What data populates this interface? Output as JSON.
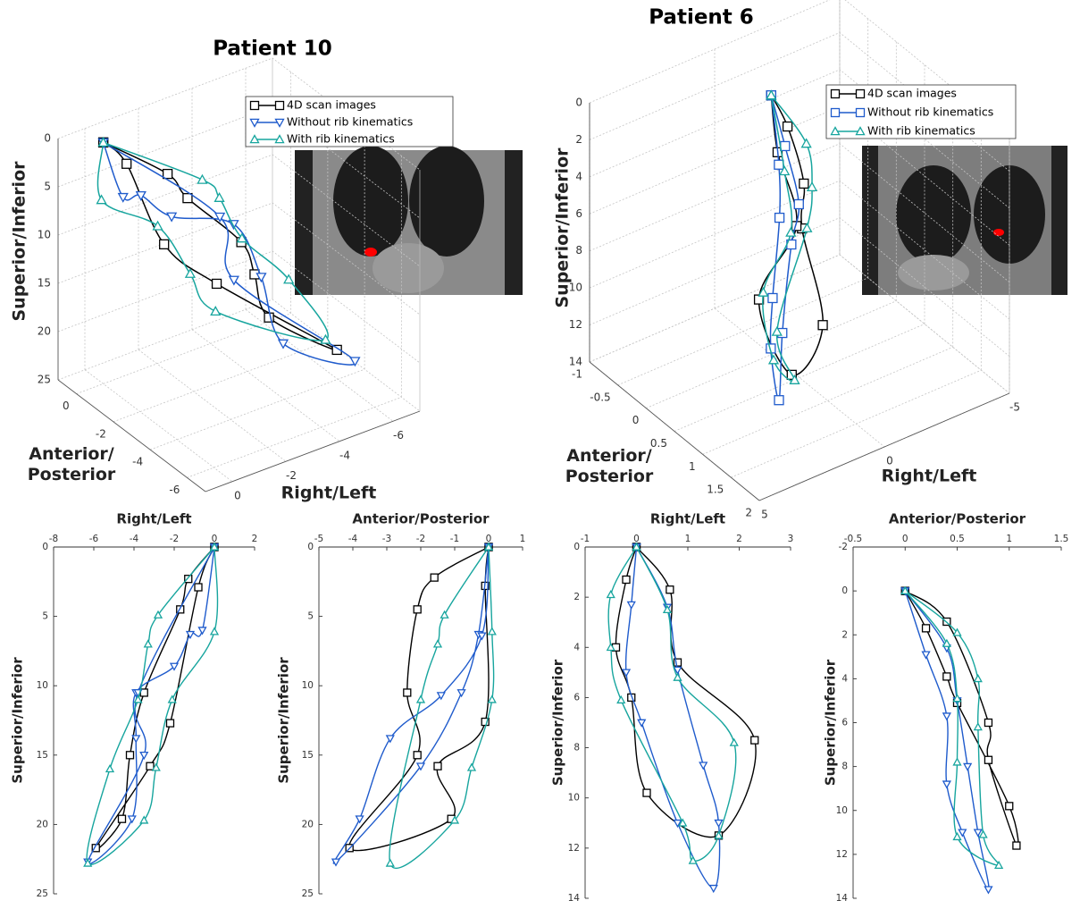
{
  "chart_data": [
    {
      "type": "line3d",
      "title": "Patient 10",
      "xlabel": "Right/Left",
      "ylabel": "Anterior/ Posterior",
      "zlabel": "Superior/Inferior",
      "xlim": [
        1,
        -7
      ],
      "xticks": [
        0,
        -2,
        -4,
        -6
      ],
      "ylim": [
        1,
        -7
      ],
      "yticks": [
        0,
        -2,
        -4,
        -6
      ],
      "zlim": [
        0,
        25
      ],
      "zticks": [
        0,
        5,
        10,
        15,
        20,
        25
      ],
      "grid": true,
      "legend": "top-right",
      "series": [
        {
          "name": "4D scan images",
          "color": "#000000",
          "marker": "square",
          "x": [
            0,
            -1.3,
            -1.7,
            -3.5,
            -4.2,
            -4.6,
            -5.9,
            -3.2,
            -2.2,
            -0.8,
            0
          ],
          "y": [
            0,
            -1.6,
            -2.1,
            -2.4,
            -2.1,
            -2.3,
            -4.1,
            -1.5,
            -0.1,
            -0.1,
            0
          ],
          "z": [
            0,
            2.3,
            4.5,
            10.5,
            15,
            19.6,
            21.7,
            15.8,
            12.7,
            2.9,
            0
          ]
        },
        {
          "name": "Without rib kinematics",
          "color": "#1f5bcc",
          "marker": "triangle-down",
          "x": [
            0,
            -0.6,
            -1.2,
            -2,
            -3.9,
            -3.9,
            -4.1,
            -6.3,
            -3.5,
            -3.8,
            0
          ],
          "y": [
            0,
            -0.2,
            -0.3,
            -0.8,
            -1.4,
            -2.9,
            -3.8,
            -4.5,
            -2,
            -0.8,
            0
          ],
          "z": [
            0,
            6,
            6.3,
            8.6,
            10.5,
            13.8,
            19.6,
            22.7,
            15,
            10.5,
            0
          ]
        },
        {
          "name": "With rib kinematics",
          "color": "#17a59e",
          "marker": "triangle-up",
          "x": [
            0,
            -2.8,
            -3.3,
            -3.8,
            -5.2,
            -6.3,
            -3.5,
            -2.9,
            -2.1,
            0,
            0
          ],
          "y": [
            0,
            -1.3,
            -1.5,
            -2,
            -2.5,
            -2.9,
            -1,
            -0.5,
            0.1,
            0.1,
            0
          ],
          "z": [
            0,
            4.9,
            7,
            11,
            16,
            22.8,
            19.7,
            15.9,
            11,
            6.1,
            0
          ]
        }
      ]
    },
    {
      "type": "line3d",
      "title": "Patient 6",
      "xlabel": "Right/Left",
      "ylabel": "Anterior/ Posterior",
      "zlabel": "Superior/Inferior",
      "xlim": [
        5,
        -5
      ],
      "xticks": [
        5,
        0,
        -5
      ],
      "ylim": [
        -1,
        2
      ],
      "yticks": [
        -1,
        -0.5,
        0,
        0.5,
        1,
        1.5,
        2
      ],
      "zlim": [
        0,
        14
      ],
      "zticks": [
        0,
        2,
        4,
        6,
        8,
        10,
        12,
        14
      ],
      "grid": true,
      "legend": "top-right",
      "series": [
        {
          "name": "4D scan images",
          "color": "#000000",
          "marker": "square",
          "x": [
            0,
            -0.2,
            -0.4,
            -0.1,
            0.2,
            1.6,
            2.3,
            0.8,
            0.65,
            0
          ],
          "y": [
            0,
            0.2,
            0.4,
            0.5,
            1,
            1.07,
            0.8,
            0.8,
            0.4,
            0
          ],
          "z": [
            0,
            1.3,
            4,
            6,
            9.8,
            11.5,
            7.7,
            4.6,
            1.7,
            0
          ]
        },
        {
          "name": "Without rib kinematics",
          "color": "#1f5bcc",
          "marker": "square",
          "x": [
            0,
            -0.1,
            -0.2,
            0.1,
            0.8,
            1.5,
            1.6,
            1.3,
            0.8,
            0.6,
            0
          ],
          "y": [
            0,
            0.2,
            0.4,
            0.4,
            0.55,
            0.8,
            0.7,
            0.6,
            0.5,
            0.4,
            0
          ],
          "z": [
            0,
            2.3,
            5,
            7,
            11,
            13.6,
            11,
            8.7,
            4.9,
            2.4,
            0
          ]
        },
        {
          "name": "With rib kinematics",
          "color": "#17a59e",
          "marker": "triangle-up",
          "x": [
            0,
            -0.5,
            -0.5,
            -0.3,
            0.9,
            1.1,
            1.6,
            1.9,
            0.8,
            0.6,
            0
          ],
          "y": [
            0,
            0.4,
            0.5,
            0.5,
            0.5,
            0.9,
            0.75,
            0.7,
            0.7,
            0.5,
            0
          ],
          "z": [
            0,
            1.9,
            4,
            6.1,
            11,
            12.5,
            11.5,
            7.8,
            5.2,
            2.5,
            0
          ]
        }
      ]
    },
    {
      "type": "line",
      "xlabel": "Right/Left",
      "ylabel": "Superior/Inferior",
      "xlim": [
        -8,
        2
      ],
      "xticks": [
        -8,
        -6,
        -4,
        -2,
        0,
        2
      ],
      "ylim": [
        0,
        25
      ],
      "yticks": [
        0,
        5,
        10,
        15,
        20,
        25
      ],
      "y_reversed": true,
      "series": [
        {
          "color": "#000000",
          "marker": "square",
          "x": [
            0,
            -1.3,
            -1.7,
            -3.5,
            -4.2,
            -4.6,
            -5.9,
            -3.2,
            -2.2,
            -0.8,
            0
          ],
          "values": [
            0,
            2.3,
            4.5,
            10.5,
            15,
            19.6,
            21.7,
            15.8,
            12.7,
            2.9,
            0
          ]
        },
        {
          "color": "#1f5bcc",
          "marker": "triangle-down",
          "x": [
            0,
            -0.6,
            -1.2,
            -2,
            -3.9,
            -3.9,
            -4.1,
            -6.3,
            -3.5,
            -3.8,
            0
          ],
          "values": [
            0,
            6,
            6.3,
            8.6,
            10.5,
            13.8,
            19.6,
            22.7,
            15,
            10.5,
            0
          ]
        },
        {
          "color": "#17a59e",
          "marker": "triangle-up",
          "x": [
            0,
            -2.8,
            -3.3,
            -3.8,
            -5.2,
            -6.3,
            -3.5,
            -2.9,
            -2.1,
            0,
            0
          ],
          "values": [
            0,
            4.9,
            7,
            11,
            16,
            22.8,
            19.7,
            15.9,
            11,
            6.1,
            0
          ]
        }
      ]
    },
    {
      "type": "line",
      "xlabel": "Anterior/Posterior",
      "ylabel": "Superior/Inferior",
      "xlim": [
        -5,
        1
      ],
      "xticks": [
        -5,
        -4,
        -3,
        -2,
        -1,
        0,
        1
      ],
      "ylim": [
        0,
        25
      ],
      "yticks": [
        0,
        5,
        10,
        15,
        20,
        25
      ],
      "y_reversed": true,
      "series": [
        {
          "color": "#000000",
          "marker": "square",
          "x": [
            0,
            -1.6,
            -2.1,
            -2.4,
            -2.1,
            -4.1,
            -1.1,
            -1.5,
            -0.1,
            -0.1,
            0
          ],
          "values": [
            0,
            2.2,
            4.5,
            10.5,
            15,
            21.7,
            19.6,
            15.8,
            12.6,
            2.8,
            0
          ]
        },
        {
          "color": "#1f5bcc",
          "marker": "triangle-down",
          "x": [
            0,
            -0.3,
            -0.8,
            -2,
            -4.5,
            -3.8,
            -2.9,
            -1.4,
            -0.2,
            0
          ],
          "values": [
            0,
            6.3,
            10.5,
            15.8,
            22.7,
            19.6,
            13.8,
            10.7,
            6.4,
            0
          ]
        },
        {
          "color": "#17a59e",
          "marker": "triangle-up",
          "x": [
            0,
            -1.3,
            -1.5,
            -2,
            -2.9,
            -1,
            -0.5,
            0.1,
            0.1,
            0
          ],
          "values": [
            0,
            4.9,
            7,
            11,
            22.8,
            19.7,
            15.9,
            11,
            6.1,
            0
          ]
        }
      ]
    },
    {
      "type": "line",
      "xlabel": "Right/Left",
      "ylabel": "Superior/Inferior",
      "xlim": [
        -1,
        3
      ],
      "xticks": [
        -1,
        0,
        1,
        2,
        3
      ],
      "ylim": [
        0,
        14
      ],
      "yticks": [
        0,
        2,
        4,
        6,
        8,
        10,
        12,
        14
      ],
      "y_reversed": true,
      "series": [
        {
          "color": "#000000",
          "marker": "square",
          "x": [
            0,
            -0.2,
            -0.4,
            -0.1,
            0.2,
            1.6,
            2.3,
            0.8,
            0.65,
            0
          ],
          "values": [
            0,
            1.3,
            4,
            6,
            9.8,
            11.5,
            7.7,
            4.6,
            1.7,
            0
          ]
        },
        {
          "color": "#1f5bcc",
          "marker": "triangle-down",
          "x": [
            0,
            -0.1,
            -0.2,
            0.1,
            0.8,
            1.5,
            1.6,
            1.3,
            0.8,
            0.6,
            0
          ],
          "values": [
            0,
            2.3,
            5,
            7,
            11,
            13.6,
            11,
            8.7,
            4.9,
            2.4,
            0
          ]
        },
        {
          "color": "#17a59e",
          "marker": "triangle-up",
          "x": [
            0,
            -0.5,
            -0.5,
            -0.3,
            0.9,
            1.1,
            1.6,
            1.9,
            0.8,
            0.6,
            0
          ],
          "values": [
            0,
            1.9,
            4,
            6.1,
            11,
            12.5,
            11.5,
            7.8,
            5.2,
            2.5,
            0
          ]
        }
      ]
    },
    {
      "type": "line",
      "xlabel": "Anterior/Posterior",
      "ylabel": "Superior/Inferior",
      "xlim": [
        -0.5,
        1.5
      ],
      "xticks": [
        -0.5,
        0,
        0.5,
        1,
        1.5
      ],
      "ylim": [
        -2,
        14
      ],
      "yticks": [
        -2,
        0,
        2,
        4,
        6,
        8,
        10,
        12,
        14
      ],
      "y_reversed": true,
      "series": [
        {
          "color": "#000000",
          "marker": "square",
          "x": [
            0,
            0.2,
            0.4,
            0.5,
            1,
            1.07,
            0.8,
            0.8,
            0.4,
            0
          ],
          "values": [
            0,
            1.7,
            3.9,
            5.1,
            9.8,
            11.6,
            7.7,
            6,
            1.4,
            0
          ]
        },
        {
          "color": "#1f5bcc",
          "marker": "triangle-down",
          "x": [
            0,
            0.2,
            0.4,
            0.4,
            0.55,
            0.8,
            0.7,
            0.6,
            0.5,
            0.4,
            0
          ],
          "values": [
            0,
            2.9,
            5.7,
            8.8,
            11,
            13.6,
            11,
            8,
            5,
            2.6,
            0
          ]
        },
        {
          "color": "#17a59e",
          "marker": "triangle-up",
          "x": [
            0,
            0.4,
            0.5,
            0.5,
            0.5,
            0.9,
            0.75,
            0.7,
            0.7,
            0.5,
            0
          ],
          "values": [
            0,
            2.4,
            4.9,
            7.8,
            11.2,
            12.5,
            11.1,
            6.2,
            4,
            1.9,
            0
          ]
        }
      ]
    }
  ]
}
